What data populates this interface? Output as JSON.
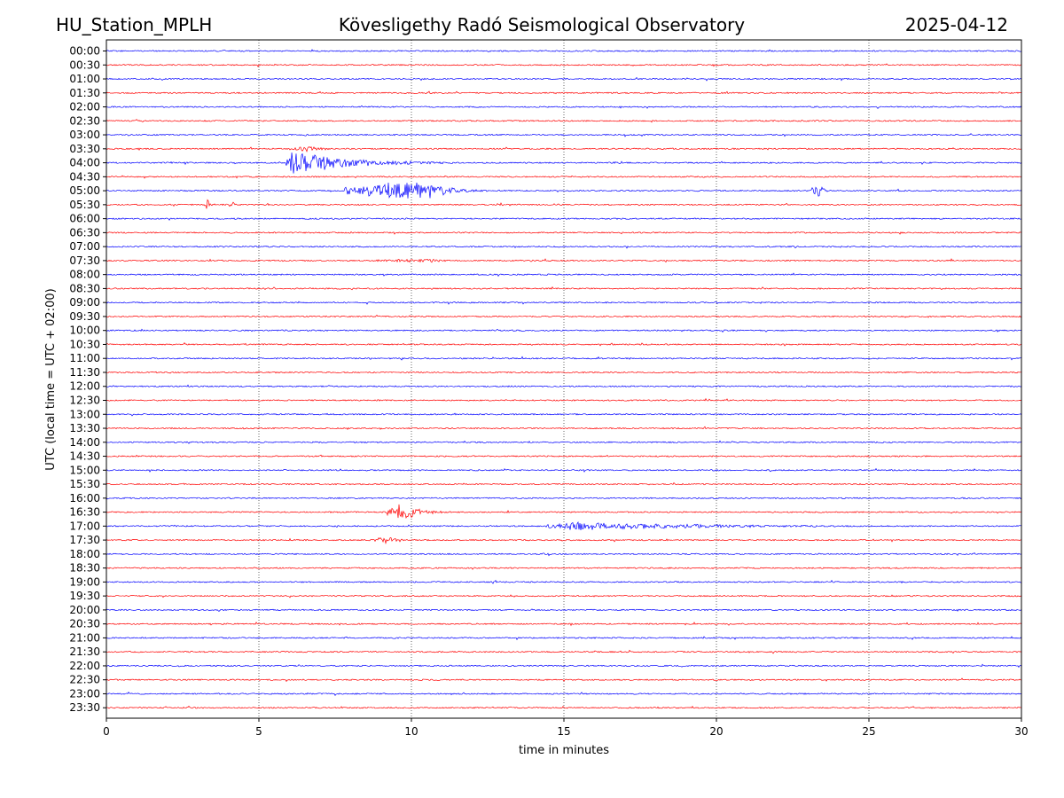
{
  "header": {
    "station": "HU_Station_MPLH",
    "observatory": "Kövesligethy Radó Seismological Observatory",
    "date": "2025-04-12"
  },
  "chart_data": {
    "type": "line",
    "title": "Kövesligethy Radó Seismological Observatory",
    "xlabel": "time in minutes",
    "ylabel": "UTC (local time = UTC + 02:00)",
    "xlim": [
      0,
      30
    ],
    "xticks": [
      "0",
      "5",
      "10",
      "15",
      "20",
      "25",
      "30"
    ],
    "grid": "vertical dotted at major x ticks",
    "colors": {
      "even": "#0000ff",
      "odd": "#ff0000"
    },
    "rows": [
      "00:00",
      "00:30",
      "01:00",
      "01:30",
      "02:00",
      "02:30",
      "03:00",
      "03:30",
      "04:00",
      "04:30",
      "05:00",
      "05:30",
      "06:00",
      "06:30",
      "07:00",
      "07:30",
      "08:00",
      "08:30",
      "09:00",
      "09:30",
      "10:00",
      "10:30",
      "11:00",
      "11:30",
      "12:00",
      "12:30",
      "13:00",
      "13:30",
      "14:00",
      "14:30",
      "15:00",
      "15:30",
      "16:00",
      "16:30",
      "17:00",
      "17:30",
      "18:00",
      "18:30",
      "19:00",
      "19:30",
      "20:00",
      "20:30",
      "21:00",
      "21:30",
      "22:00",
      "22:30",
      "23:00",
      "23:30"
    ],
    "events": [
      {
        "row": "03:30",
        "start": 6.0,
        "end": 8.2,
        "amp": 0.5,
        "peak": 6.6
      },
      {
        "row": "04:00",
        "start": 5.9,
        "end": 12.0,
        "amp": 1.8,
        "peak": 6.1
      },
      {
        "row": "04:00",
        "start": 2.5,
        "end": 2.8,
        "amp": 0.25,
        "peak": 2.6
      },
      {
        "row": "04:00",
        "start": 16.3,
        "end": 17.2,
        "amp": 0.2,
        "peak": 16.8
      },
      {
        "row": "05:00",
        "start": 7.8,
        "end": 12.8,
        "amp": 1.6,
        "peak": 10.3
      },
      {
        "row": "05:00",
        "start": 23.1,
        "end": 23.8,
        "amp": 1.3,
        "peak": 23.4
      },
      {
        "row": "05:30",
        "start": 3.1,
        "end": 3.8,
        "amp": 0.8,
        "peak": 3.3
      },
      {
        "row": "05:30",
        "start": 4.0,
        "end": 4.4,
        "amp": 0.6,
        "peak": 4.2
      },
      {
        "row": "05:30",
        "start": 12.8,
        "end": 13.1,
        "amp": 0.45,
        "peak": 12.95
      },
      {
        "row": "07:30",
        "start": 8.8,
        "end": 11.8,
        "amp": 0.35,
        "peak": 10.8
      },
      {
        "row": "16:30",
        "start": 9.2,
        "end": 11.5,
        "amp": 1.3,
        "peak": 9.7
      },
      {
        "row": "17:00",
        "start": 14.4,
        "end": 30.0,
        "amp": 0.65,
        "peak": 15.2
      },
      {
        "row": "17:30",
        "start": 8.8,
        "end": 10.5,
        "amp": 0.6,
        "peak": 9.2
      }
    ]
  }
}
